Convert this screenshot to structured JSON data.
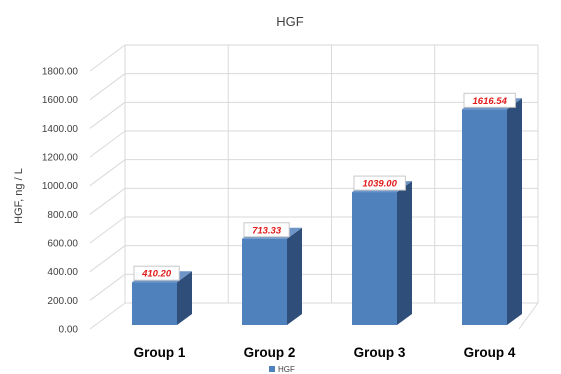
{
  "chart_data": {
    "type": "bar",
    "title": "HGF",
    "ylabel": "HGF, ng / L",
    "xlabel": "",
    "categories": [
      "Group 1",
      "Group 2",
      "Group 3",
      "Group 4"
    ],
    "series": [
      {
        "name": "HGF",
        "values": [
          410.2,
          713.33,
          1039.0,
          1616.54
        ]
      }
    ],
    "data_labels": [
      "410.20",
      "713.33",
      "1039.00",
      "1616.54"
    ],
    "y_ticks": [
      "0.00",
      "200.00",
      "400.00",
      "600.00",
      "800.00",
      "1000.00",
      "1200.00",
      "1400.00",
      "1600.00",
      "1800.00"
    ],
    "ylim": [
      0,
      1800
    ],
    "grid": true,
    "style": "3d-bar",
    "legend_position": "bottom",
    "colors": {
      "bar_front": "#4f81bd",
      "bar_side": "#2f4f7a",
      "bar_top": "#6d95c8",
      "grid": "#d9d9d9",
      "data_label": "#e21a1a"
    }
  }
}
